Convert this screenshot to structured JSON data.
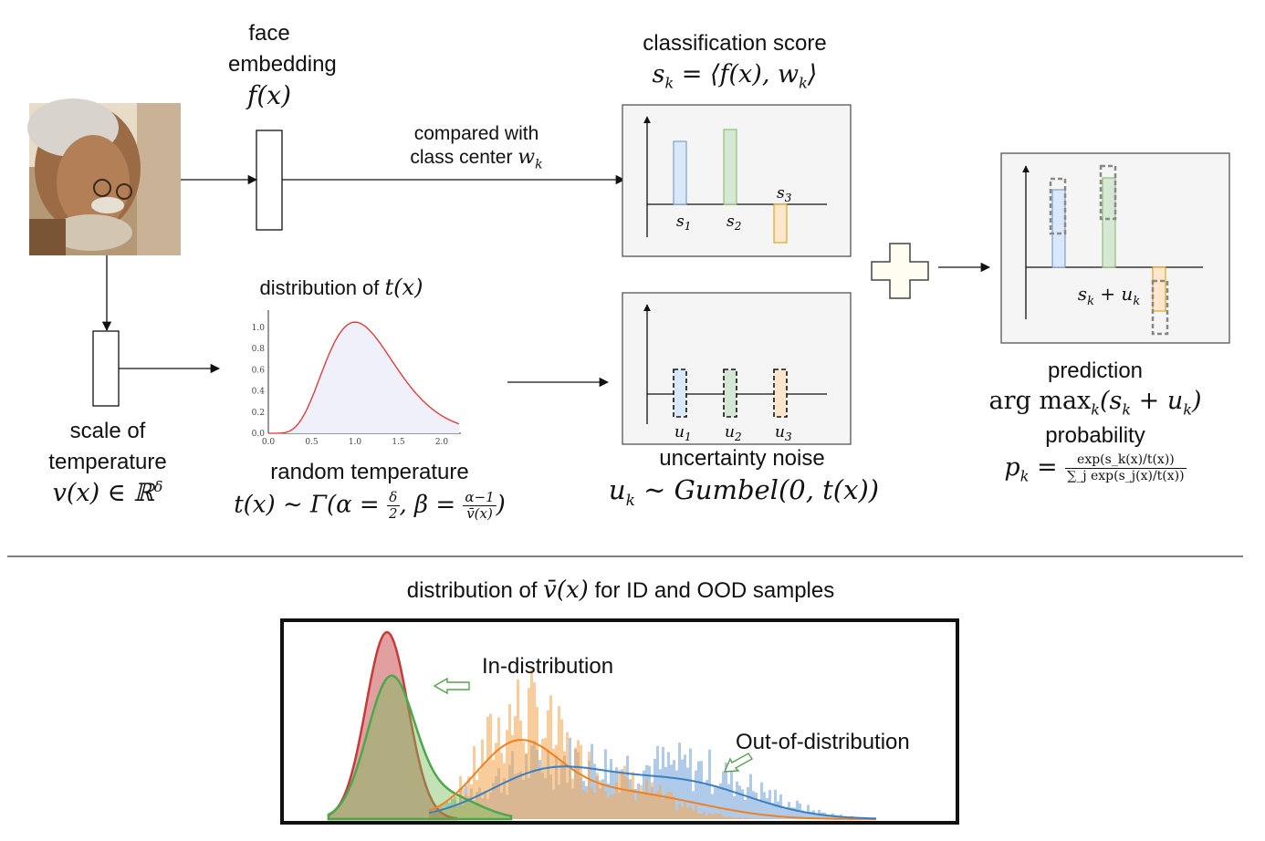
{
  "face_embedding": {
    "line1": "face",
    "line2": "embedding",
    "symbol": "f(x)"
  },
  "compare_label": {
    "line1": "compared with",
    "line2": "class center",
    "symbol": "w",
    "sub": "k"
  },
  "classification": {
    "title": "classification score",
    "formula_lhs": "s",
    "formula_sub": "k",
    "formula_rhs": " = ⟨f(x), w",
    "formula_close": "⟩",
    "bar_labels": [
      "s1",
      "s2",
      "s3"
    ]
  },
  "distribution": {
    "title": "distribution of",
    "symbol": "t(x)",
    "ytick_labels": [
      "1.0",
      "0.8",
      "0.6",
      "0.4",
      "0.2",
      "0.0"
    ],
    "xtick_labels": [
      "0.0",
      "0.5",
      "1.0",
      "1.5",
      "2.0"
    ]
  },
  "scale": {
    "line1": "scale of",
    "line2": "temperature",
    "symbol": "v(x) ∈ ℝ",
    "sup": "δ"
  },
  "random_temperature": {
    "title": "random temperature",
    "lhs": "t(x) ∼ Γ(α = ",
    "frac1_num": "δ",
    "frac1_den": "2",
    "mid": ", β = ",
    "frac2_num": "α−1",
    "frac2_den": "v̄(x)",
    "close": ")"
  },
  "uncertainty": {
    "title": "uncertainty noise",
    "formula": "u",
    "sub": "k",
    "rhs": " ∼ Gumbel(0, t(x))",
    "bar_labels": [
      "u1",
      "u2",
      "u3"
    ]
  },
  "prediction": {
    "title": "prediction",
    "formula": "arg max",
    "sub": "k",
    "rhs": "(s",
    "rhs2": " + u",
    "close": ")",
    "box_label": "s_k + u_k"
  },
  "probability": {
    "title": "probability",
    "lhs": "p",
    "sub": "k",
    "eq": " = ",
    "num": "exp(s_k(x)/t(x))",
    "den": "∑_j exp(s_j(x)/t(x))"
  },
  "bottom": {
    "title_pre": "distribution of ",
    "title_sym": "v̄(x)",
    "title_post": " for ID and OOD samples",
    "label_id": "In-distribution",
    "label_ood": "Out-of-distribution"
  },
  "colors": {
    "blue": "#dae8fc",
    "blue_edge": "#6c8ebf",
    "green": "#d5e8d4",
    "green_edge": "#82b366",
    "orange": "#ffe6cc",
    "orange_edge": "#d79b00",
    "panel_bg": "#f5f5f5",
    "curve_red": "#e03030"
  }
}
